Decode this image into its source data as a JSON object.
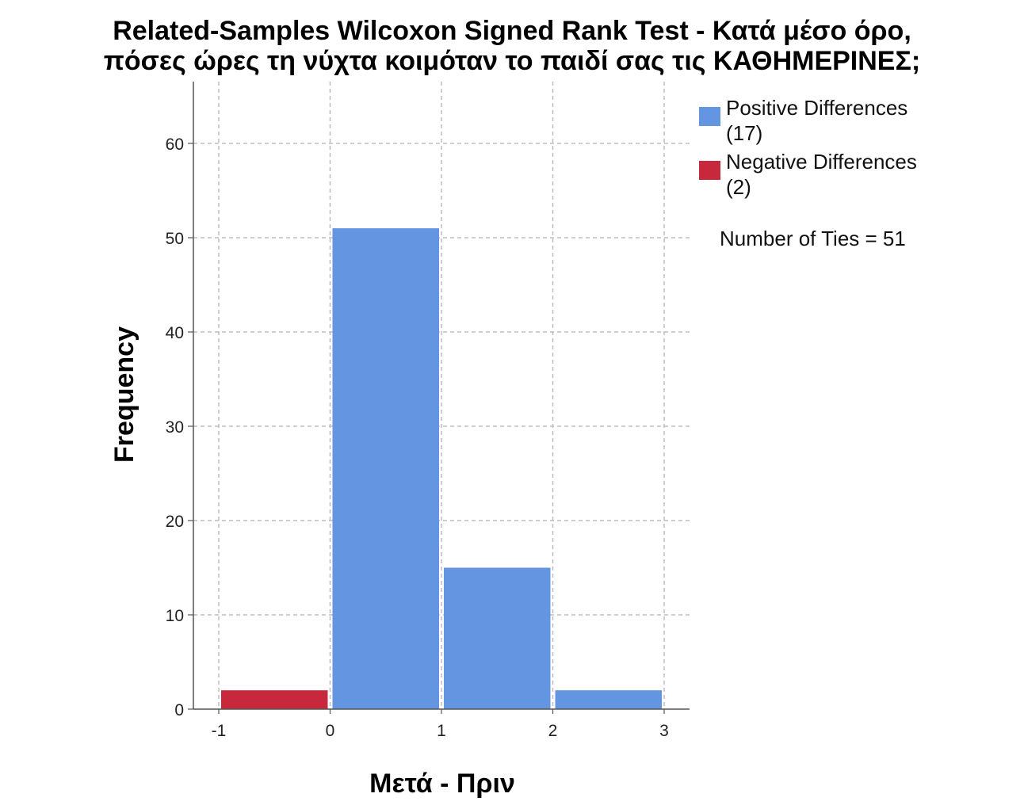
{
  "chart_data": {
    "type": "bar",
    "title_lines": [
      "Related-Samples Wilcoxon Signed Rank Test - Κατά μέσο όρο,",
      "πόσες ώρες τη νύχτα κοιμόταν το παιδί σας τις ΚΑΘΗΜΕΡΙΝΕΣ;"
    ],
    "xlabel": "Μετά - Πριν",
    "ylabel": "Frequency",
    "xlim": [
      -1,
      3
    ],
    "ylim": [
      0,
      65
    ],
    "x_ticks": [
      "-1",
      "0",
      "1",
      "2",
      "3"
    ],
    "y_ticks": [
      "0",
      "10",
      "20",
      "30",
      "40",
      "50",
      "60"
    ],
    "grid": true,
    "legend_position": "top-right",
    "series": [
      {
        "name": "Negative Differences",
        "color": "#c8283c",
        "bins": [
          {
            "from": -1,
            "to": 0,
            "value": 2
          }
        ]
      },
      {
        "name": "Positive Differences",
        "color": "#6495e0",
        "bins": [
          {
            "from": 0,
            "to": 1,
            "value": 51
          },
          {
            "from": 1,
            "to": 2,
            "value": 15
          },
          {
            "from": 2,
            "to": 3,
            "value": 2
          }
        ]
      }
    ],
    "legend": [
      {
        "label_line1": "Positive Differences",
        "label_line2": "(17)",
        "color": "#6495e0"
      },
      {
        "label_line1": "Negative Differences",
        "label_line2": "(2)",
        "color": "#c8283c"
      }
    ],
    "annotation": "Number of Ties = 51"
  }
}
